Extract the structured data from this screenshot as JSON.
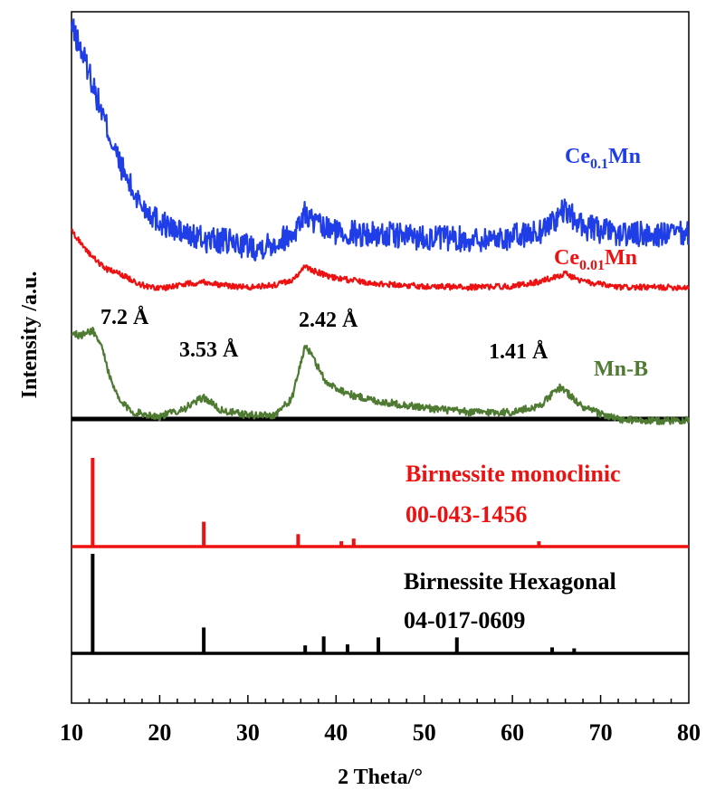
{
  "chart_data": {
    "type": "line",
    "xlabel": "2 Theta/°",
    "ylabel": "Intensity /a.u.",
    "xlim": [
      10,
      80
    ],
    "x_ticks": [
      10,
      20,
      30,
      40,
      50,
      60,
      70,
      80
    ],
    "grid": false,
    "series": [
      {
        "name": "Ce0.1Mn",
        "label_main": "Ce",
        "label_sub": "0.1",
        "label_tail": "Mn",
        "color": "#1f3ee8",
        "noise": 0.05,
        "points": [
          [
            10,
            1.0
          ],
          [
            11,
            0.92
          ],
          [
            12,
            0.83
          ],
          [
            13,
            0.72
          ],
          [
            14,
            0.62
          ],
          [
            15,
            0.52
          ],
          [
            16,
            0.44
          ],
          [
            17,
            0.37
          ],
          [
            18,
            0.32
          ],
          [
            20,
            0.26
          ],
          [
            22,
            0.22
          ],
          [
            25,
            0.19
          ],
          [
            28,
            0.18
          ],
          [
            31,
            0.16
          ],
          [
            33,
            0.18
          ],
          [
            35,
            0.21
          ],
          [
            36.5,
            0.29
          ],
          [
            38,
            0.24
          ],
          [
            40,
            0.22
          ],
          [
            45,
            0.21
          ],
          [
            50,
            0.2
          ],
          [
            55,
            0.19
          ],
          [
            60,
            0.2
          ],
          [
            63,
            0.22
          ],
          [
            66,
            0.3
          ],
          [
            68,
            0.24
          ],
          [
            72,
            0.21
          ],
          [
            76,
            0.21
          ],
          [
            80,
            0.21
          ]
        ]
      },
      {
        "name": "Ce0.01Mn",
        "label_main": "Ce",
        "label_sub": "0.01",
        "label_tail": "Mn",
        "color": "#ee1111",
        "noise": 0.025,
        "points": [
          [
            10,
            1.0
          ],
          [
            11,
            0.9
          ],
          [
            12,
            0.8
          ],
          [
            13,
            0.72
          ],
          [
            14,
            0.66
          ],
          [
            16,
            0.6
          ],
          [
            18,
            0.52
          ],
          [
            20,
            0.49
          ],
          [
            23,
            0.53
          ],
          [
            25,
            0.55
          ],
          [
            27,
            0.52
          ],
          [
            30,
            0.5
          ],
          [
            33,
            0.52
          ],
          [
            35,
            0.56
          ],
          [
            36.5,
            0.68
          ],
          [
            38,
            0.63
          ],
          [
            40,
            0.58
          ],
          [
            45,
            0.53
          ],
          [
            50,
            0.51
          ],
          [
            55,
            0.5
          ],
          [
            60,
            0.51
          ],
          [
            63,
            0.55
          ],
          [
            66,
            0.62
          ],
          [
            68,
            0.55
          ],
          [
            72,
            0.5
          ],
          [
            76,
            0.5
          ],
          [
            80,
            0.5
          ]
        ]
      },
      {
        "name": "Mn-B",
        "label_main": "Mn-B",
        "label_sub": "",
        "label_tail": "",
        "color": "#4e7a32",
        "noise": 0.025,
        "points": [
          [
            10,
            0.8
          ],
          [
            11,
            0.78
          ],
          [
            12.4,
            0.82
          ],
          [
            13.5,
            0.7
          ],
          [
            14.5,
            0.47
          ],
          [
            15.5,
            0.34
          ],
          [
            17,
            0.27
          ],
          [
            20,
            0.24
          ],
          [
            23,
            0.3
          ],
          [
            25,
            0.37
          ],
          [
            27,
            0.28
          ],
          [
            30,
            0.25
          ],
          [
            33,
            0.25
          ],
          [
            35,
            0.36
          ],
          [
            36.5,
            0.72
          ],
          [
            37.5,
            0.62
          ],
          [
            39,
            0.46
          ],
          [
            42,
            0.38
          ],
          [
            45,
            0.34
          ],
          [
            50,
            0.3
          ],
          [
            55,
            0.27
          ],
          [
            60,
            0.27
          ],
          [
            63,
            0.31
          ],
          [
            65.5,
            0.44
          ],
          [
            68,
            0.3
          ],
          [
            72,
            0.22
          ],
          [
            76,
            0.21
          ],
          [
            80,
            0.22
          ]
        ]
      }
    ],
    "annotations": [
      {
        "text": "7.2 Å",
        "x": 12.4
      },
      {
        "text": "3.53 Å",
        "x": 25
      },
      {
        "text": "2.42 Å",
        "x": 37
      },
      {
        "text": "1.41 Å",
        "x": 65.5
      }
    ],
    "references": [
      {
        "name_line1": "Birnessite monoclinic",
        "name_line2": "00-043-1456",
        "color": "#ee1111",
        "peaks": [
          [
            12.4,
            1.0
          ],
          [
            25.0,
            0.28
          ],
          [
            35.7,
            0.14
          ],
          [
            40.6,
            0.06
          ],
          [
            42.0,
            0.09
          ],
          [
            63.0,
            0.06
          ]
        ]
      },
      {
        "name_line1": "Birnessite Hexagonal",
        "name_line2": "04-017-0609",
        "color": "#000000",
        "peaks": [
          [
            12.4,
            1.0
          ],
          [
            25.0,
            0.26
          ],
          [
            36.5,
            0.08
          ],
          [
            38.6,
            0.17
          ],
          [
            41.3,
            0.09
          ],
          [
            44.8,
            0.16
          ],
          [
            53.7,
            0.16
          ],
          [
            64.5,
            0.06
          ],
          [
            67.0,
            0.05
          ]
        ]
      }
    ]
  }
}
